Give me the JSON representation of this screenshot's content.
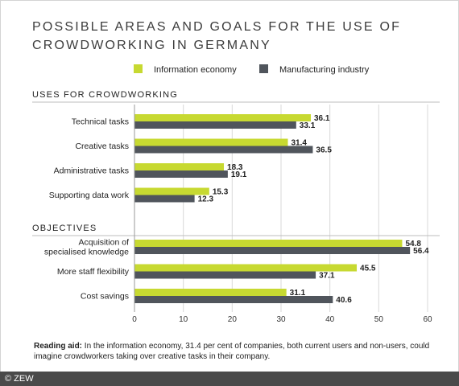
{
  "title_line1": "POSSIBLE AREAS AND GOALS FOR THE USE OF",
  "title_line2": "CROWDWORKING IN GERMANY",
  "colors": {
    "info": "#c7d931",
    "manu": "#50555c",
    "grid": "#d9d9d9"
  },
  "note": {
    "label": "Reading aid:",
    "text": " In the information economy, 31.4 per cent of companies, both current users and non-users, could imagine crowdworkers taking over creative tasks in their company."
  },
  "footer": "© ZEW",
  "chart_data": {
    "type": "bar",
    "orientation": "horizontal",
    "xlim": [
      0,
      60
    ],
    "xticks": [
      "0",
      "10",
      "20",
      "30",
      "40",
      "50",
      "60"
    ],
    "legend": [
      "Information economy",
      "Manufacturing industry"
    ],
    "legend_placement": "top",
    "grid": true,
    "groups": [
      {
        "heading": "USES FOR CROWDWORKING",
        "categories": [
          {
            "label": [
              "Technical tasks"
            ],
            "values": [
              36.1,
              33.1
            ],
            "labels": [
              "36.1",
              "33.1"
            ]
          },
          {
            "label": [
              "Creative tasks"
            ],
            "values": [
              31.4,
              36.5
            ],
            "labels": [
              "31.4",
              "36.5"
            ]
          },
          {
            "label": [
              "Administrative tasks"
            ],
            "values": [
              18.3,
              19.1
            ],
            "labels": [
              "18.3",
              "19.1"
            ]
          },
          {
            "label": [
              "Supporting data work"
            ],
            "values": [
              15.3,
              12.3
            ],
            "labels": [
              "15.3",
              "12.3"
            ]
          }
        ]
      },
      {
        "heading": "OBJECTIVES",
        "categories": [
          {
            "label": [
              "Acquisition of",
              "specialised knowledge"
            ],
            "values": [
              54.8,
              56.4
            ],
            "labels": [
              "54.8",
              "56.4"
            ]
          },
          {
            "label": [
              "More staff flexibility"
            ],
            "values": [
              45.5,
              37.1
            ],
            "labels": [
              "45.5",
              "37.1"
            ]
          },
          {
            "label": [
              "Cost savings"
            ],
            "values": [
              31.1,
              40.6
            ],
            "labels": [
              "31.1",
              "40.6"
            ]
          }
        ]
      }
    ]
  }
}
